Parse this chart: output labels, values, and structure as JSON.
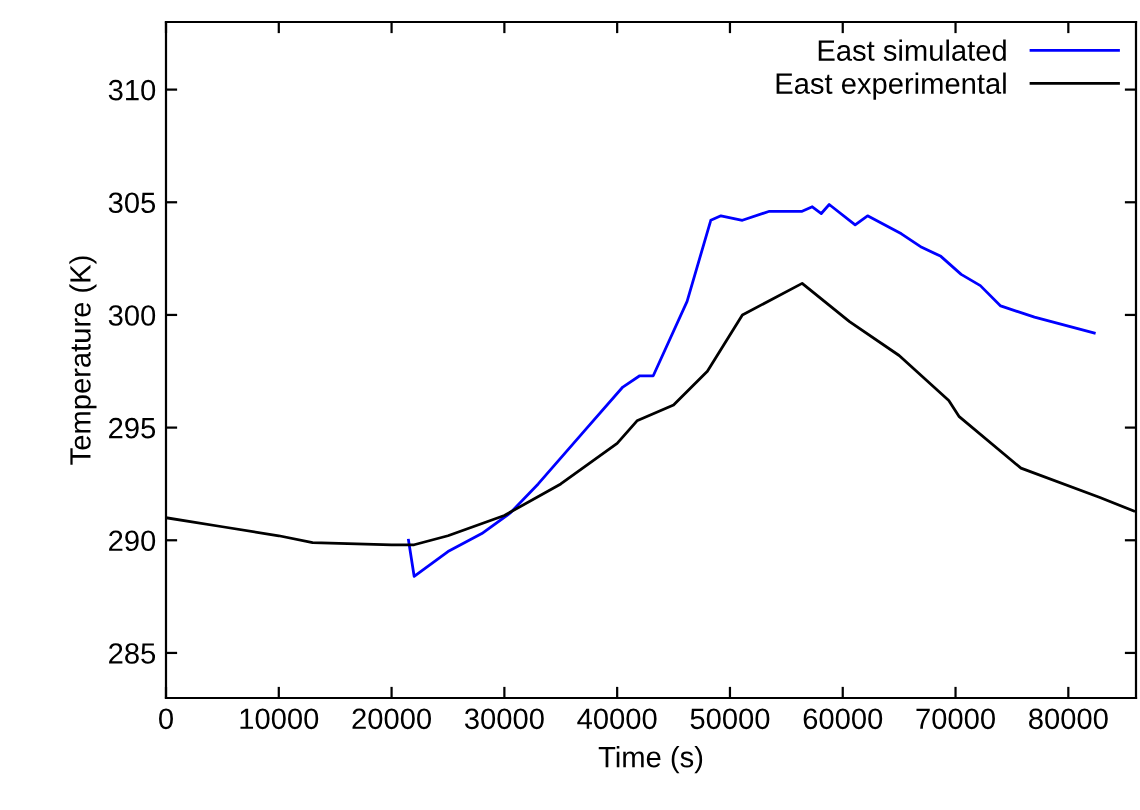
{
  "chart_data": {
    "type": "line",
    "xlabel": "Time (s)",
    "ylabel": "Temperature (K)",
    "xlim": [
      0,
      86000
    ],
    "xticks": [
      0,
      10000,
      20000,
      30000,
      40000,
      50000,
      60000,
      70000,
      80000
    ],
    "ylim": [
      283,
      313
    ],
    "yticks": [
      285,
      290,
      295,
      300,
      305,
      310
    ],
    "grid": false,
    "legend": "top right",
    "series": [
      {
        "name": "East simulated",
        "color": "#0000ff",
        "x": [
          21500,
          22000,
          25000,
          28000,
          30500,
          33000,
          37000,
          40500,
          42000,
          43200,
          46200,
          48300,
          49200,
          51100,
          53500,
          56400,
          57300,
          58100,
          58800,
          61100,
          62200,
          65200,
          67000,
          68700,
          70500,
          72200,
          74000,
          77000,
          80000,
          82300
        ],
        "values": [
          290.0,
          288.4,
          289.5,
          290.3,
          291.2,
          292.5,
          294.8,
          296.8,
          297.3,
          297.3,
          300.6,
          304.2,
          304.4,
          304.2,
          304.6,
          304.6,
          304.8,
          304.5,
          304.9,
          304.0,
          304.4,
          303.6,
          303.0,
          302.6,
          301.8,
          301.3,
          300.4,
          299.9,
          299.5,
          299.2
        ]
      },
      {
        "name": "East experimental",
        "color": "#000000",
        "x": [
          0,
          5000,
          10000,
          13000,
          20000,
          22000,
          25000,
          30000,
          35000,
          40000,
          41760,
          45000,
          48000,
          51100,
          56400,
          60600,
          65000,
          69400,
          70300,
          75800,
          82800,
          85800
        ],
        "values": [
          291.0,
          290.6,
          290.2,
          289.9,
          289.8,
          289.8,
          290.2,
          291.1,
          292.5,
          294.3,
          295.3,
          296.0,
          297.5,
          300.0,
          301.4,
          299.7,
          298.2,
          296.2,
          295.5,
          293.2,
          291.9,
          291.3
        ]
      }
    ]
  }
}
